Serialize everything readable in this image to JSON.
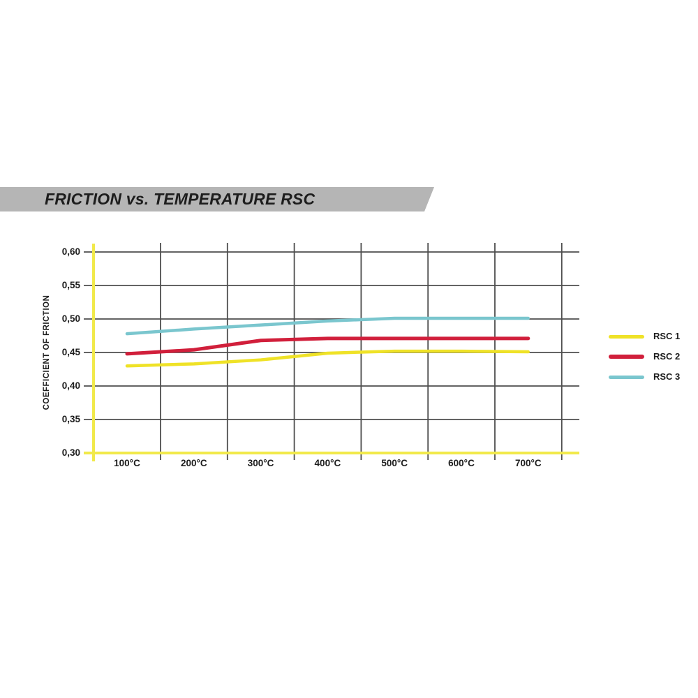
{
  "header": {
    "title": "FRICTION vs. TEMPERATURE RSC",
    "banner_color": "#b5b5b5",
    "text_color": "#1d1d1d"
  },
  "chart_data": {
    "type": "line",
    "title": "FRICTION vs. TEMPERATURE RSC",
    "xlabel": "",
    "ylabel": "COEFFICIENT OF FRICTION",
    "categories": [
      "100°C",
      "200°C",
      "300°C",
      "400°C",
      "500°C",
      "600°C",
      "700°C"
    ],
    "y_ticks": [
      "0,60",
      "0,55",
      "0,50",
      "0,45",
      "0,40",
      "0,35",
      "0,30"
    ],
    "ylim": [
      0.3,
      0.6
    ],
    "y_step": 0.05,
    "grid": true,
    "legend_position": "right",
    "series": [
      {
        "name": "RSC 1",
        "color": "#efe227",
        "values": [
          0.43,
          0.433,
          0.439,
          0.449,
          0.452,
          0.452,
          0.451
        ]
      },
      {
        "name": "RSC 2",
        "color": "#d11f3b",
        "values": [
          0.448,
          0.454,
          0.468,
          0.471,
          0.471,
          0.471,
          0.471
        ]
      },
      {
        "name": "RSC 3",
        "color": "#7ac6ce",
        "values": [
          0.478,
          0.485,
          0.491,
          0.497,
          0.501,
          0.501,
          0.501
        ]
      }
    ],
    "colors": {
      "axis": "#f1e94a",
      "gridline": "#4e4e4e",
      "tick_text": "#1d1d1d"
    }
  }
}
